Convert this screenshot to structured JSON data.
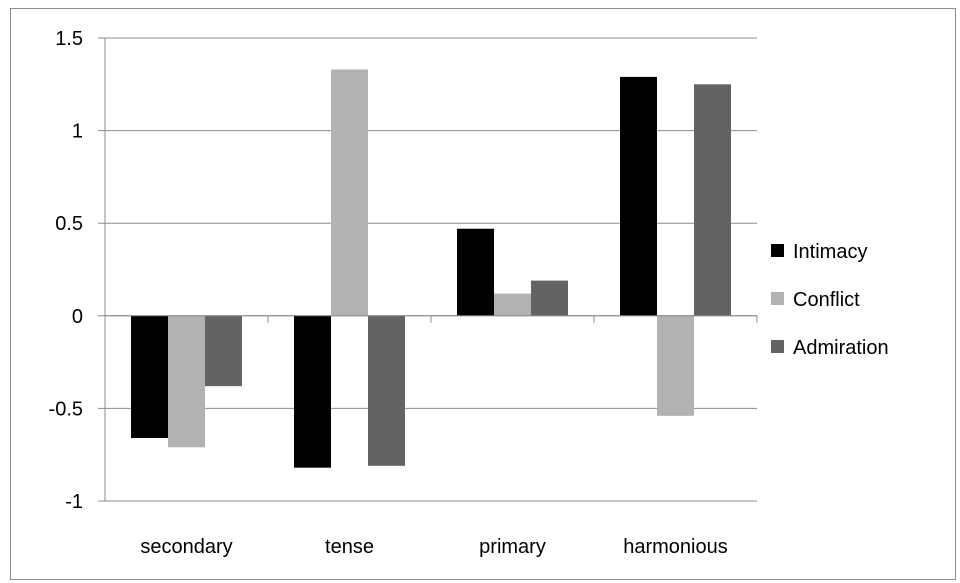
{
  "chart_data": {
    "type": "bar",
    "title": "",
    "xlabel": "",
    "ylabel": "",
    "categories": [
      "secondary",
      "tense",
      "primary",
      "harmonious"
    ],
    "series": [
      {
        "name": "Intimacy",
        "color": "#000000",
        "values": [
          -0.66,
          -0.82,
          0.47,
          1.29
        ]
      },
      {
        "name": "Conflict",
        "color": "#b2b2b2",
        "values": [
          -0.71,
          1.33,
          0.12,
          -0.54
        ]
      },
      {
        "name": "Admiration",
        "color": "#636363",
        "values": [
          -0.38,
          -0.81,
          0.19,
          1.25
        ]
      }
    ],
    "ylim": [
      -1,
      1.5
    ],
    "yticks": [
      "-1",
      "-0.5",
      "0",
      "0.5",
      "1",
      "1.5"
    ],
    "grid": true,
    "legend": "right"
  }
}
